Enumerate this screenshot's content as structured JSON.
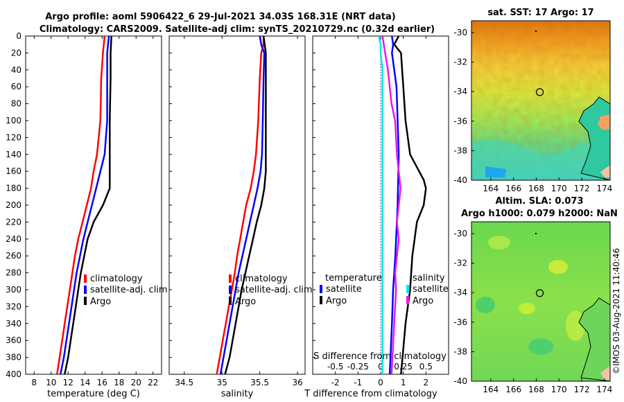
{
  "title": {
    "line1": "Argo profile: aoml 5906422_6 29-Jul-2021 34.03S 168.31E (NRT data)",
    "line2": "Climatology: CARS2009. Satellite-adj clim: synTS_20210729.nc (0.32d earlier)"
  },
  "timestamp": "©IMOS 03-Aug-2021 11:40:46",
  "colors": {
    "climatology": "#ff0000",
    "satellite": "#0000ff",
    "argo": "#000000",
    "cyan": "#00e5ee",
    "magenta": "#e619e6",
    "zero_line": "#555555"
  },
  "chart_data": [
    {
      "id": "temperature",
      "type": "line",
      "xlabel": "temperature (deg C)",
      "ylabel": "",
      "xlim": [
        7,
        23
      ],
      "ylim": [
        0,
        400
      ],
      "xticks": [
        8,
        10,
        12,
        14,
        16,
        18,
        20,
        22
      ],
      "yticks": [
        0,
        20,
        40,
        60,
        80,
        100,
        120,
        140,
        160,
        180,
        200,
        220,
        240,
        260,
        280,
        300,
        320,
        340,
        360,
        380,
        400
      ],
      "legend": [
        "climatology",
        "satellite-adj. clim",
        "Argo"
      ],
      "series": [
        {
          "name": "climatology",
          "color": "#ff0000",
          "depth": [
            0,
            10,
            20,
            50,
            100,
            140,
            160,
            180,
            200,
            220,
            240,
            260,
            280,
            300,
            320,
            340,
            360,
            380,
            400
          ],
          "values": [
            16.3,
            16.2,
            16.1,
            15.9,
            15.8,
            15.4,
            15.0,
            14.7,
            14.2,
            13.7,
            13.2,
            12.8,
            12.5,
            12.2,
            11.9,
            11.6,
            11.3,
            11.0,
            10.7
          ]
        },
        {
          "name": "satellite-adj. clim",
          "color": "#0000ff",
          "depth": [
            0,
            10,
            20,
            50,
            100,
            140,
            160,
            180,
            200,
            220,
            240,
            260,
            280,
            300,
            320,
            340,
            360,
            380,
            400
          ],
          "values": [
            16.8,
            16.7,
            16.6,
            16.6,
            16.6,
            16.3,
            15.8,
            15.3,
            14.8,
            14.3,
            13.8,
            13.4,
            13.0,
            12.7,
            12.4,
            12.1,
            11.8,
            11.5,
            11.1
          ]
        },
        {
          "name": "Argo",
          "color": "#000000",
          "depth": [
            0,
            20,
            50,
            100,
            140,
            160,
            180,
            200,
            220,
            240,
            260,
            280,
            300,
            320,
            340,
            360,
            380,
            400
          ],
          "values": [
            17.1,
            17.0,
            17.0,
            16.9,
            16.9,
            16.9,
            16.9,
            16.1,
            15.0,
            14.3,
            13.9,
            13.5,
            13.2,
            12.9,
            12.6,
            12.3,
            12.0,
            11.6
          ]
        }
      ]
    },
    {
      "id": "salinity",
      "type": "line",
      "xlabel": "salinity",
      "xlim": [
        34.3,
        36.1
      ],
      "ylim": [
        0,
        400
      ],
      "xticks": [
        34.5,
        35,
        35.5,
        36
      ],
      "legend": [
        "climatology",
        "satellite-adj. clim",
        "Argo"
      ],
      "series": [
        {
          "name": "climatology",
          "color": "#ff0000",
          "depth": [
            0,
            10,
            20,
            50,
            100,
            140,
            160,
            180,
            200,
            220,
            240,
            260,
            280,
            300,
            320,
            340,
            360,
            380,
            400
          ],
          "values": [
            35.55,
            35.55,
            35.52,
            35.5,
            35.48,
            35.45,
            35.42,
            35.38,
            35.32,
            35.28,
            35.24,
            35.2,
            35.17,
            35.13,
            35.09,
            35.05,
            35.01,
            34.97,
            34.93
          ]
        },
        {
          "name": "satellite-adj. clim",
          "color": "#0000ff",
          "depth": [
            0,
            10,
            20,
            50,
            100,
            140,
            160,
            180,
            200,
            220,
            240,
            260,
            280,
            300,
            320,
            340,
            360,
            380,
            400
          ],
          "values": [
            35.5,
            35.52,
            35.56,
            35.55,
            35.54,
            35.53,
            35.51,
            35.47,
            35.42,
            35.37,
            35.32,
            35.27,
            35.22,
            35.18,
            35.14,
            35.1,
            35.06,
            35.02,
            34.98
          ]
        },
        {
          "name": "Argo",
          "color": "#000000",
          "depth": [
            0,
            20,
            50,
            100,
            140,
            160,
            180,
            200,
            220,
            240,
            260,
            280,
            300,
            320,
            340,
            360,
            380,
            400
          ],
          "values": [
            35.55,
            35.58,
            35.58,
            35.58,
            35.58,
            35.58,
            35.56,
            35.52,
            35.46,
            35.41,
            35.36,
            35.31,
            35.26,
            35.22,
            35.18,
            35.14,
            35.1,
            35.04
          ]
        }
      ]
    },
    {
      "id": "difference",
      "type": "line",
      "xlabel": "T difference from climatology",
      "xlabel_top": "S difference from climatology",
      "xlim": [
        -3,
        3
      ],
      "ylim": [
        0,
        400
      ],
      "xticks": [
        -2,
        -1,
        0,
        1,
        2
      ],
      "xticks_top": [
        "-0.5",
        "-0.25",
        "0",
        "0.25",
        "0.5"
      ],
      "legend_title_t": "temperature",
      "legend_title_s": "salinity",
      "legend_t": [
        "satellite",
        "Argo"
      ],
      "legend_s": [
        "satellite",
        "Argo"
      ],
      "series": [
        {
          "name": "T satellite",
          "color": "#0000ff",
          "depth": [
            0,
            10,
            20,
            40,
            60,
            100,
            140,
            200,
            260,
            300,
            340,
            400
          ],
          "values": [
            0.5,
            0.55,
            0.5,
            0.6,
            0.7,
            0.75,
            0.8,
            0.75,
            0.65,
            0.55,
            0.5,
            0.4
          ]
        },
        {
          "name": "T Argo",
          "color": "#000000",
          "depth": [
            0,
            10,
            20,
            40,
            60,
            100,
            140,
            160,
            170,
            180,
            200,
            220,
            240,
            260,
            300,
            340,
            400
          ],
          "values": [
            0.8,
            0.6,
            0.9,
            0.95,
            1.0,
            1.1,
            1.3,
            1.7,
            1.9,
            2.0,
            1.9,
            1.6,
            1.5,
            1.4,
            1.3,
            1.1,
            0.9
          ]
        },
        {
          "name": "S satellite",
          "color": "#00e5ee",
          "depth": [
            0,
            10,
            20,
            40,
            100,
            200,
            300,
            400
          ],
          "values": [
            -0.02,
            0.0,
            0.0,
            0.02,
            0.02,
            0.02,
            0.02,
            0.02
          ]
        },
        {
          "name": "S Argo",
          "color": "#e619e6",
          "depth": [
            0,
            20,
            40,
            80,
            100,
            140,
            160,
            180,
            200,
            220,
            240,
            260,
            280,
            300,
            320,
            340,
            360,
            380,
            400
          ],
          "values": [
            0.02,
            0.05,
            0.08,
            0.12,
            0.16,
            0.18,
            0.2,
            0.22,
            0.2,
            0.18,
            0.2,
            0.18,
            0.16,
            0.17,
            0.16,
            0.15,
            0.14,
            0.13,
            0.12
          ]
        }
      ]
    },
    {
      "id": "map-sst",
      "type": "heatmap",
      "title": "sat. SST: 17 Argo: 17",
      "xticks": [
        164,
        166,
        168,
        170,
        172,
        174
      ],
      "yticks": [
        -30,
        -32,
        -34,
        -36,
        -38,
        -40
      ],
      "xlim": [
        162.3,
        174.5
      ],
      "ylim": [
        -40,
        -29.2
      ],
      "marker": {
        "lon": 168.31,
        "lat": -34.03
      }
    },
    {
      "id": "map-sla",
      "type": "heatmap",
      "title_line1": "Altim. SLA: 0.073",
      "title_line2": "Argo h1000: 0.079 h2000: NaN",
      "xticks": [
        164,
        166,
        168,
        170,
        172,
        174
      ],
      "yticks": [
        -30,
        -32,
        -34,
        -36,
        -38,
        -40
      ],
      "xlim": [
        162.3,
        174.5
      ],
      "ylim": [
        -40,
        -29.2
      ],
      "marker": {
        "lon": 168.31,
        "lat": -34.03
      }
    }
  ]
}
